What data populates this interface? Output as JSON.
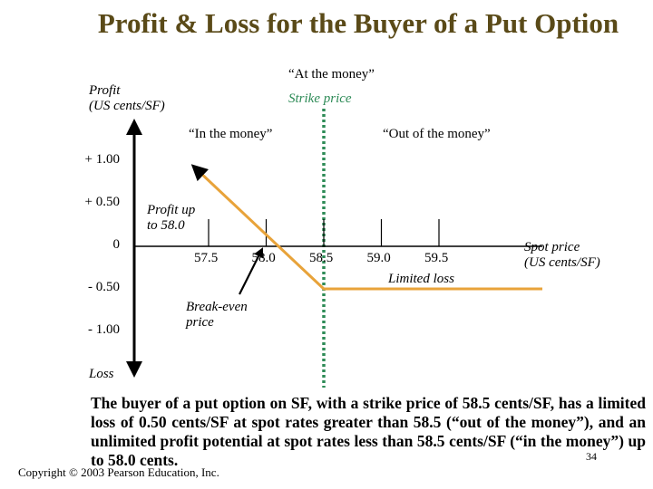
{
  "chart_data": {
    "type": "line",
    "title": "Profit & Loss for the Buyer of a Put Option",
    "ylabel": "Profit\n(US cents/SF)",
    "ylabel_bottom": "Loss",
    "xlabel": "Spot price\n(US cents/SF)",
    "y_ticks": [
      "+ 1.00",
      "+ 0.50",
      "0",
      "- 0.50",
      "- 1.00"
    ],
    "x_ticks": [
      "57.5",
      "58.0",
      "58.5",
      "59.0",
      "59.5"
    ],
    "x_tick_values": [
      57.5,
      58.0,
      58.5,
      59.0,
      59.5
    ],
    "xlim": [
      56.8,
      59.9
    ],
    "ylim": [
      -1.25,
      1.0
    ],
    "strike_price": 58.5,
    "breakeven": 58.0,
    "series": [
      {
        "x": [
          57.4,
          58.5,
          60.0
        ],
        "y": [
          0.9,
          -0.5,
          -0.5
        ]
      }
    ],
    "annotations": {
      "at_the_money": "“At the money”",
      "strike_price": "Strike price",
      "in_the_money": "“In the money”",
      "out_of_the_money": "“Out of the money”",
      "profit_up_to": "Profit up\nto 58.0",
      "breakeven": "Break-even\nprice",
      "limited_loss": "Limited loss"
    },
    "colors": {
      "payoff": "#e8a33a",
      "strike": "#2e8b57",
      "axis": "#000000",
      "title": "#5a4a18"
    }
  },
  "note": "The buyer of a put option on SF, with a strike price of 58.5 cents/SF, has a limited loss of 0.50 cents/SF at spot rates greater than 58.5 (“out of the money”), and an unlimited profit potential at spot rates less than 58.5 cents/SF (“in the money”) up to 58.0 cents.",
  "page_number": "34",
  "copyright": "Copyright © 2003 Pearson Education, Inc."
}
